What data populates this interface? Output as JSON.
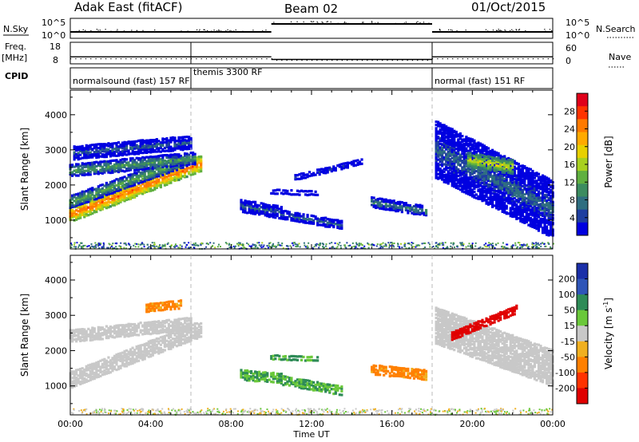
{
  "header": {
    "station": "Adak East (fitACF)",
    "beam": "Beam 02",
    "date": "01/Oct/2015"
  },
  "status_panel": {
    "nsky_label": "N.Sky",
    "nsearch_label": "N.Search",
    "noise_ticks": [
      "10^5",
      "10^0"
    ],
    "freq_label": "Freq.",
    "freq_unit": "[MHz]",
    "freq_ticks": [
      "18",
      "8"
    ],
    "nave_label": "Nave",
    "nave_ticks": [
      "60",
      "0"
    ],
    "cpid_label": "CPID"
  },
  "cpid_segments": [
    {
      "label": "normalsound (fast) 157 RF",
      "start_hour": 0,
      "end_hour": 6
    },
    {
      "label": "themis 3300 RF",
      "start_hour": 6,
      "end_hour": 18
    },
    {
      "label": "normal (fast) 151 RF",
      "start_hour": 18,
      "end_hour": 24
    }
  ],
  "power_colorbar": {
    "label": "Power [dB]",
    "ticks": [
      "28",
      "24",
      "20",
      "16",
      "12",
      "8",
      "4"
    ],
    "colors": [
      "#e0001a",
      "#ff3300",
      "#ff7a00",
      "#ffaa00",
      "#e8d000",
      "#a8d020",
      "#60b040",
      "#3c8c60",
      "#2f6e80",
      "#1f3fa0",
      "#0000e0"
    ]
  },
  "velocity_colorbar": {
    "label": "Velocity [m s^-1]",
    "ticks": [
      "200",
      "100",
      "50",
      "15",
      "-15",
      "-50",
      "-100",
      "-200"
    ],
    "colors": [
      "#1a2fa8",
      "#2f55b8",
      "#2e8b57",
      "#6ac83a",
      "#c8c8c8",
      "#f0b020",
      "#ff8000",
      "#ff3300",
      "#e00000"
    ]
  },
  "chart_data": {
    "type": "heatmap",
    "title": "Adak East (fitACF) Beam 02 01/Oct/2015",
    "xlabel": "Time UT",
    "ylabel": "Slant Range [km]",
    "x_ticks": [
      "00:00",
      "04:00",
      "08:00",
      "12:00",
      "16:00",
      "20:00",
      "00:00"
    ],
    "y_ticks": [
      "1000",
      "2000",
      "3000",
      "4000"
    ],
    "xlim_hours": [
      0,
      24
    ],
    "ylim_km": [
      180,
      4700
    ],
    "mode_change_hours": [
      6,
      18
    ],
    "noise_sky_level": [
      {
        "start_hour": 0,
        "end_hour": 10,
        "level": "low"
      },
      {
        "start_hour": 10,
        "end_hour": 18,
        "level": "high"
      },
      {
        "start_hour": 18,
        "end_hour": 24,
        "level": "low"
      }
    ],
    "frequency_mhz": [
      {
        "start_hour": 0,
        "end_hour": 10,
        "value": 12
      },
      {
        "start_hour": 10,
        "end_hour": 18,
        "value": 10.5
      },
      {
        "start_hour": 18,
        "end_hour": 24,
        "value": 12
      }
    ],
    "power_regions": [
      {
        "t0": 0.0,
        "t1": 6.5,
        "r_start": 1150,
        "r_end": 2600,
        "width": 420,
        "power_db": 26
      },
      {
        "t0": 0.0,
        "t1": 5.8,
        "r_start": 1500,
        "r_end": 2700,
        "width": 330,
        "power_db": 15
      },
      {
        "t0": 0.0,
        "t1": 6.2,
        "r_start": 2400,
        "r_end": 2750,
        "width": 320,
        "power_db": 14
      },
      {
        "t0": 0.2,
        "t1": 6.0,
        "r_start": 2900,
        "r_end": 3200,
        "width": 350,
        "power_db": 9
      },
      {
        "t0": 8.5,
        "t1": 10.5,
        "r_start": 1400,
        "r_end": 1200,
        "width": 320,
        "power_db": 9
      },
      {
        "t0": 10.0,
        "t1": 12.3,
        "r_start": 1800,
        "r_end": 1750,
        "width": 90,
        "power_db": 8
      },
      {
        "t0": 10.5,
        "t1": 13.5,
        "r_start": 1150,
        "r_end": 850,
        "width": 220,
        "power_db": 10
      },
      {
        "t0": 11.2,
        "t1": 14.5,
        "r_start": 2200,
        "r_end": 2650,
        "width": 120,
        "power_db": 6
      },
      {
        "t0": 15.0,
        "t1": 17.7,
        "r_start": 1500,
        "r_end": 1250,
        "width": 260,
        "power_db": 12
      },
      {
        "t0": 18.2,
        "t1": 24.0,
        "r_start": 3000,
        "r_end": 1300,
        "width": 1600,
        "power_db": 9
      },
      {
        "t0": 19.8,
        "t1": 22.0,
        "r_start": 2700,
        "r_end": 2500,
        "width": 380,
        "power_db": 20
      }
    ],
    "velocity_regions": [
      {
        "t0": 0.0,
        "t1": 6.5,
        "r_start": 1150,
        "r_end": 2600,
        "width": 420,
        "velocity": 0
      },
      {
        "t0": 0.0,
        "t1": 6.0,
        "r_start": 2400,
        "r_end": 2750,
        "width": 320,
        "velocity": 0
      },
      {
        "t0": 3.8,
        "t1": 5.5,
        "r_start": 3200,
        "r_end": 3300,
        "width": 200,
        "velocity": -60
      },
      {
        "t0": 8.5,
        "t1": 10.5,
        "r_start": 1300,
        "r_end": 1200,
        "width": 250,
        "velocity": 30
      },
      {
        "t0": 10.0,
        "t1": 12.3,
        "r_start": 1800,
        "r_end": 1750,
        "width": 90,
        "velocity": 30
      },
      {
        "t0": 10.5,
        "t1": 13.5,
        "r_start": 1150,
        "r_end": 850,
        "width": 220,
        "velocity": 30
      },
      {
        "t0": 15.0,
        "t1": 17.7,
        "r_start": 1450,
        "r_end": 1300,
        "width": 240,
        "velocity": -60
      },
      {
        "t0": 18.2,
        "t1": 24.0,
        "r_start": 2700,
        "r_end": 1500,
        "width": 1000,
        "velocity": 0
      },
      {
        "t0": 19.0,
        "t1": 22.2,
        "r_start": 2400,
        "r_end": 3150,
        "width": 200,
        "velocity": -200
      }
    ]
  }
}
